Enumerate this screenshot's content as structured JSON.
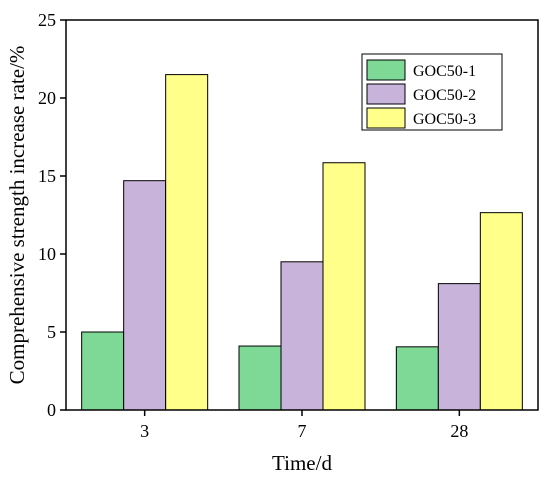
{
  "chart_data": {
    "type": "bar",
    "categories": [
      "3",
      "7",
      "28"
    ],
    "series": [
      {
        "name": "GOC50-1",
        "values": [
          5.0,
          4.1,
          4.05
        ],
        "color": "#7ed996"
      },
      {
        "name": "GOC50-2",
        "values": [
          14.7,
          9.5,
          8.1
        ],
        "color": "#c8b4da"
      },
      {
        "name": "GOC50-3",
        "values": [
          21.5,
          15.85,
          12.65
        ],
        "color": "#ffff8a"
      }
    ],
    "xlabel": "Time/d",
    "ylabel": "Comprehensive strength increase rate/%",
    "ylim": [
      0,
      25
    ],
    "yticks": [
      "0",
      "5",
      "10",
      "15",
      "20",
      "25"
    ],
    "legend_position": "top-right",
    "grid": false
  }
}
